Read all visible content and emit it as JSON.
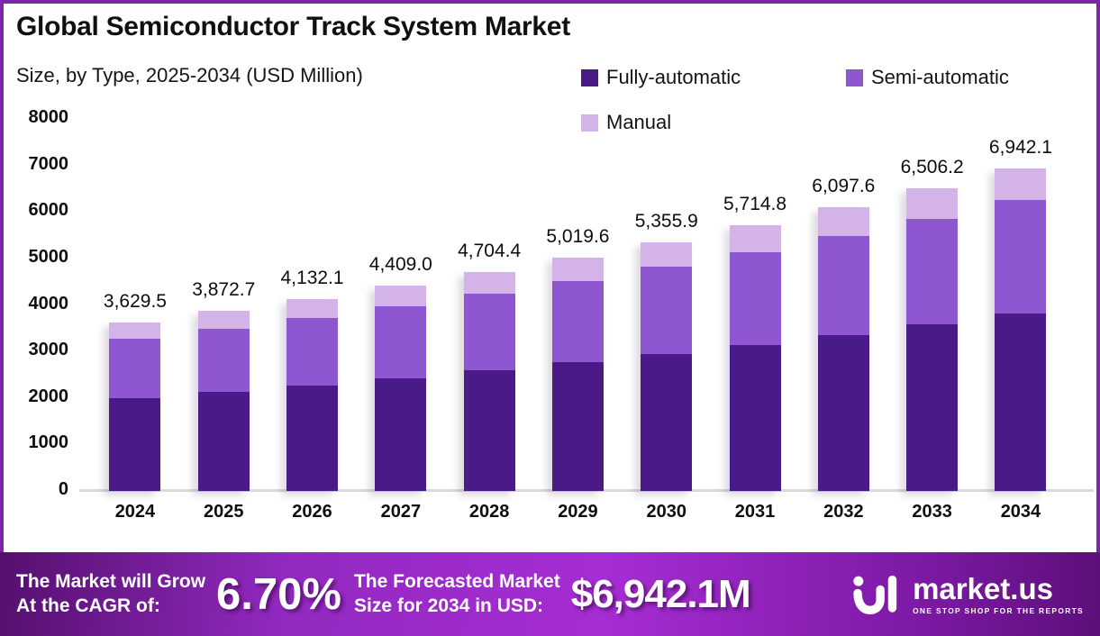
{
  "header": {
    "title": "Global Semiconductor Track System Market",
    "subtitle": "Size, by Type, 2025-2034 (USD Million)"
  },
  "legend": [
    {
      "label": "Fully-automatic",
      "color": "#4a1a88"
    },
    {
      "label": "Semi-automatic",
      "color": "#8f56d2"
    },
    {
      "label": "Manual",
      "color": "#d4b4e8"
    }
  ],
  "chart_data": {
    "type": "bar",
    "stacked": true,
    "grid": false,
    "legend_position": "top-right",
    "categories": [
      "2024",
      "2025",
      "2026",
      "2027",
      "2028",
      "2029",
      "2030",
      "2031",
      "2032",
      "2033",
      "2034"
    ],
    "series": [
      {
        "name": "Fully-automatic",
        "color": "#4a1a88",
        "values": [
          1996.2,
          2130.0,
          2272.7,
          2425.0,
          2587.4,
          2760.8,
          2945.7,
          3143.1,
          3353.7,
          3578.4,
          3818.2
        ]
      },
      {
        "name": "Semi-automatic",
        "color": "#8f56d2",
        "values": [
          1270.3,
          1355.4,
          1446.2,
          1543.2,
          1646.5,
          1756.9,
          1874.6,
          2000.2,
          2134.2,
          2277.2,
          2429.7
        ]
      },
      {
        "name": "Manual",
        "color": "#d4b4e8",
        "values": [
          363.0,
          387.3,
          413.2,
          440.8,
          470.5,
          501.9,
          535.6,
          571.5,
          609.7,
          650.6,
          694.2
        ]
      }
    ],
    "totals": [
      3629.5,
      3872.7,
      4132.1,
      4409.0,
      4704.4,
      5019.6,
      5355.9,
      5714.8,
      6097.6,
      6506.2,
      6942.1
    ],
    "total_labels": [
      "3,629.5",
      "3,872.7",
      "4,132.1",
      "4,409.0",
      "4,704.4",
      "5,019.6",
      "5,355.9",
      "5,714.8",
      "6,097.6",
      "6,506.2",
      "6,942.1"
    ],
    "title": "Global Semiconductor Track System Market",
    "subtitle": "Size, by Type, 2025-2034 (USD Million)",
    "xlabel": "",
    "ylabel": "",
    "ylim": [
      0,
      8000
    ],
    "yticks": [
      0,
      1000,
      2000,
      3000,
      4000,
      5000,
      6000,
      7000,
      8000
    ]
  },
  "footer": {
    "cagr_label_line1": "The Market will Grow",
    "cagr_label_line2": "At the CAGR of:",
    "cagr_value": "6.70%",
    "forecast_label_line1": "The Forecasted Market",
    "forecast_label_line2": "Size for 2034 in USD:",
    "forecast_value": "$6,942.1M",
    "brand": {
      "name": "market.us",
      "tagline": "ONE STOP SHOP FOR THE REPORTS"
    }
  }
}
